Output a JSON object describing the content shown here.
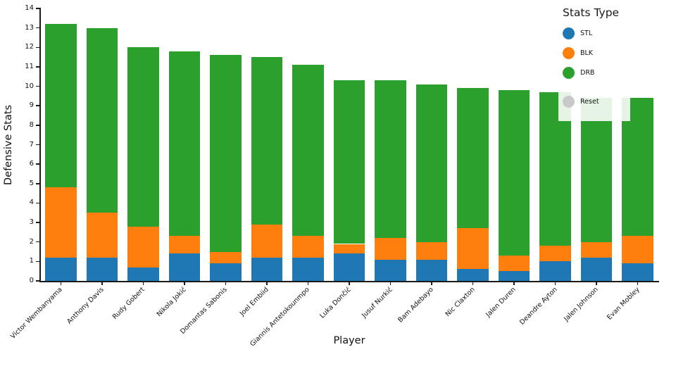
{
  "chart_data": {
    "type": "bar",
    "stacked": true,
    "xlabel": "Player",
    "ylabel": "Defensive Stats",
    "ylim": [
      0,
      14
    ],
    "ytick_step": 1,
    "grid": false,
    "categories": [
      "Victor Wembanyama",
      "Anthony Davis",
      "Rudy Gobert",
      "Nikola Jokić",
      "Domantas Sabonis",
      "Joel Embiid",
      "Giannis Antetokounmpo",
      "Luka Dončić",
      "Jusuf Nurkić",
      "Bam Adebayo",
      "Nic Claxton",
      "Jalen Duren",
      "Deandre Ayton",
      "Jalen Johnson",
      "Evan Mobley"
    ],
    "series": [
      {
        "name": "STL",
        "color": "#1f77b4",
        "values": [
          1.2,
          1.2,
          0.7,
          1.4,
          0.9,
          1.2,
          1.2,
          1.4,
          1.1,
          1.1,
          0.6,
          0.5,
          1.0,
          1.2,
          0.9
        ]
      },
      {
        "name": "BLK",
        "color": "#ff7f0e",
        "values": [
          3.6,
          2.3,
          2.1,
          0.9,
          0.6,
          1.7,
          1.1,
          0.5,
          1.1,
          0.9,
          2.1,
          0.8,
          0.8,
          0.8,
          1.4
        ]
      },
      {
        "name": "DRB",
        "color": "#2ca02c",
        "values": [
          8.4,
          9.5,
          9.2,
          9.5,
          10.1,
          8.6,
          8.8,
          8.4,
          8.1,
          8.1,
          7.2,
          8.5,
          7.9,
          7.4,
          7.1
        ]
      }
    ],
    "legend": {
      "title": "Stats Type",
      "position": "top-right",
      "items": [
        {
          "label": "STL",
          "color": "#1f77b4"
        },
        {
          "label": "BLK",
          "color": "#ff7f0e"
        },
        {
          "label": "DRB",
          "color": "#2ca02c"
        },
        {
          "label": "Reset",
          "color": "#c9c9c9"
        }
      ]
    }
  }
}
